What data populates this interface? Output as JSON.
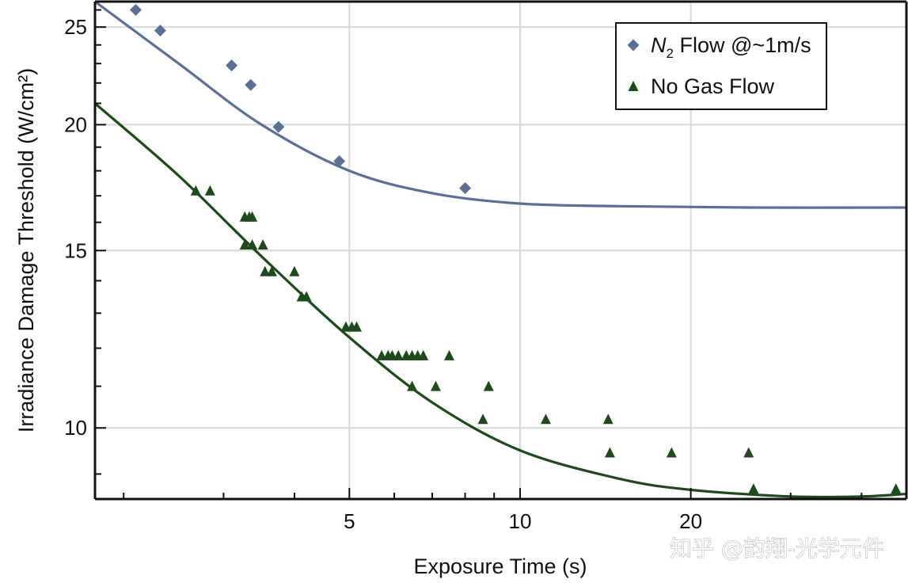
{
  "chart_data": {
    "type": "scatter",
    "xlabel": "Exposure Time (s)",
    "ylabel": "Irradiance Damage Threshold (W/cm²)",
    "x_scale": "log",
    "y_scale": "log",
    "xlim": [
      1.78,
      48
    ],
    "ylim": [
      8.5,
      26.5
    ],
    "x_ticks": [
      5,
      10,
      20
    ],
    "y_ticks": [
      10,
      15,
      20,
      25
    ],
    "grid": true,
    "legend_position": "top-right",
    "series": [
      {
        "name": "N2 Flow @~1m/s",
        "marker": "diamond",
        "color": "#5c6f95",
        "points": [
          [
            2.1,
            26
          ],
          [
            2.32,
            24.8
          ],
          [
            3.1,
            22.9
          ],
          [
            3.35,
            21.9
          ],
          [
            3.75,
            19.9
          ],
          [
            4.8,
            18.4
          ],
          [
            8.0,
            17.3
          ]
        ],
        "fit_curve": [
          [
            1.78,
            26.5
          ],
          [
            2.5,
            23.0
          ],
          [
            3.5,
            20.0
          ],
          [
            5,
            18.0
          ],
          [
            7,
            17.1
          ],
          [
            10,
            16.7
          ],
          [
            15,
            16.6
          ],
          [
            25,
            16.55
          ],
          [
            48,
            16.55
          ]
        ]
      },
      {
        "name": "No Gas Flow",
        "marker": "triangle",
        "color": "#1f4a1c",
        "points": [
          [
            2.68,
            17.2
          ],
          [
            2.84,
            17.2
          ],
          [
            3.27,
            16.2
          ],
          [
            3.33,
            16.2
          ],
          [
            3.37,
            16.2
          ],
          [
            3.27,
            15.2
          ],
          [
            3.37,
            15.2
          ],
          [
            3.52,
            15.2
          ],
          [
            3.55,
            14.3
          ],
          [
            3.65,
            14.3
          ],
          [
            4.0,
            14.3
          ],
          [
            4.12,
            13.5
          ],
          [
            4.2,
            13.5
          ],
          [
            4.93,
            12.6
          ],
          [
            5.05,
            12.6
          ],
          [
            5.15,
            12.6
          ],
          [
            5.7,
            11.8
          ],
          [
            5.85,
            11.8
          ],
          [
            5.95,
            11.8
          ],
          [
            6.1,
            11.8
          ],
          [
            6.3,
            11.8
          ],
          [
            6.45,
            11.8
          ],
          [
            6.6,
            11.8
          ],
          [
            6.75,
            11.8
          ],
          [
            7.5,
            11.8
          ],
          [
            6.45,
            11.0
          ],
          [
            7.1,
            11.0
          ],
          [
            8.8,
            11.0
          ],
          [
            8.6,
            10.2
          ],
          [
            11.1,
            10.2
          ],
          [
            14.3,
            10.2
          ],
          [
            14.4,
            9.45
          ],
          [
            18.5,
            9.45
          ],
          [
            25.3,
            9.45
          ],
          [
            25.8,
            8.7
          ],
          [
            46,
            8.7
          ]
        ],
        "fit_curve": [
          [
            1.78,
            21.0
          ],
          [
            2.5,
            17.8
          ],
          [
            3.5,
            14.8
          ],
          [
            5,
            12.3
          ],
          [
            7,
            10.6
          ],
          [
            10,
            9.5
          ],
          [
            15,
            8.9
          ],
          [
            20,
            8.68
          ],
          [
            30,
            8.55
          ],
          [
            40,
            8.55
          ],
          [
            48,
            8.6
          ]
        ]
      }
    ],
    "legend": {
      "entries": [
        {
          "marker": "diamond",
          "prefix": "N",
          "subscript": "2",
          "suffix": " Flow @~1m/s"
        },
        {
          "marker": "triangle",
          "text": "No Gas Flow"
        }
      ]
    }
  },
  "watermark": "知乎 @韵翔-光学元件"
}
